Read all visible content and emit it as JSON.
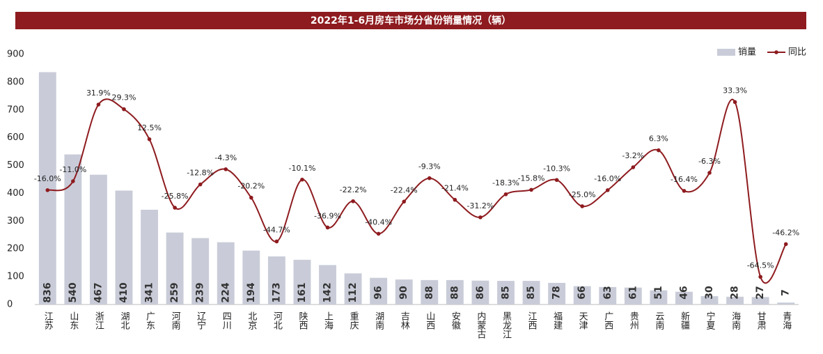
{
  "chart_data": {
    "type": "bar",
    "title": "2022年1-6月房车市场分省份销量情况（辆）",
    "categories": [
      "江苏",
      "山东",
      "浙江",
      "湖北",
      "广东",
      "河南",
      "辽宁",
      "四川",
      "北京",
      "河北",
      "陕西",
      "上海",
      "重庆",
      "湖南",
      "吉林",
      "山西",
      "安徽",
      "内蒙古",
      "黑龙江",
      "江西",
      "福建",
      "天津",
      "广西",
      "贵州",
      "云南",
      "新疆",
      "宁夏",
      "海南",
      "甘肃",
      "青海"
    ],
    "series": [
      {
        "name": "销量",
        "type": "bar",
        "color": "#c9ccd8",
        "values": [
          836,
          540,
          467,
          410,
          341,
          259,
          239,
          224,
          194,
          173,
          161,
          142,
          112,
          96,
          90,
          88,
          88,
          86,
          85,
          85,
          78,
          66,
          63,
          61,
          51,
          46,
          30,
          28,
          27,
          7
        ]
      },
      {
        "name": "同比",
        "type": "line",
        "color": "#8e1b1f",
        "axis": "y2",
        "values": [
          -16.0,
          -11.0,
          31.9,
          29.3,
          12.5,
          -25.8,
          -12.8,
          -4.3,
          -20.2,
          -44.7,
          -10.1,
          -36.9,
          -22.2,
          -40.4,
          -22.4,
          -9.3,
          -21.4,
          -31.2,
          -18.3,
          -15.8,
          -10.3,
          -25.0,
          -16.0,
          -3.2,
          6.3,
          -16.4,
          -6.3,
          33.3,
          -64.5,
          -46.2
        ],
        "value_labels": [
          "-16.0%",
          "-11.0%",
          "31.9%",
          "29.3%",
          "12.5%",
          "-25.8%",
          "-12.8%",
          "-4.3%",
          "-20.2%",
          "-44.7%",
          "-10.1%",
          "-36.9%",
          "-22.2%",
          "-40.4%",
          "-22.4%",
          "-9.3%",
          "-21.4%",
          "-31.2%",
          "-18.3%",
          "-15.8%",
          "-10.3%",
          "-25.0%",
          "-16.0%",
          "-3.2%",
          "6.3%",
          "-16.4%",
          "-6.3%",
          "33.3%",
          "-64.5%",
          "-46.2%"
        ]
      }
    ],
    "ylim": [
      0,
      900
    ],
    "yticks": [
      0,
      100,
      200,
      300,
      400,
      500,
      600,
      700,
      800,
      900
    ],
    "y2lim": [
      -80,
      60
    ],
    "legend": "upper right"
  }
}
